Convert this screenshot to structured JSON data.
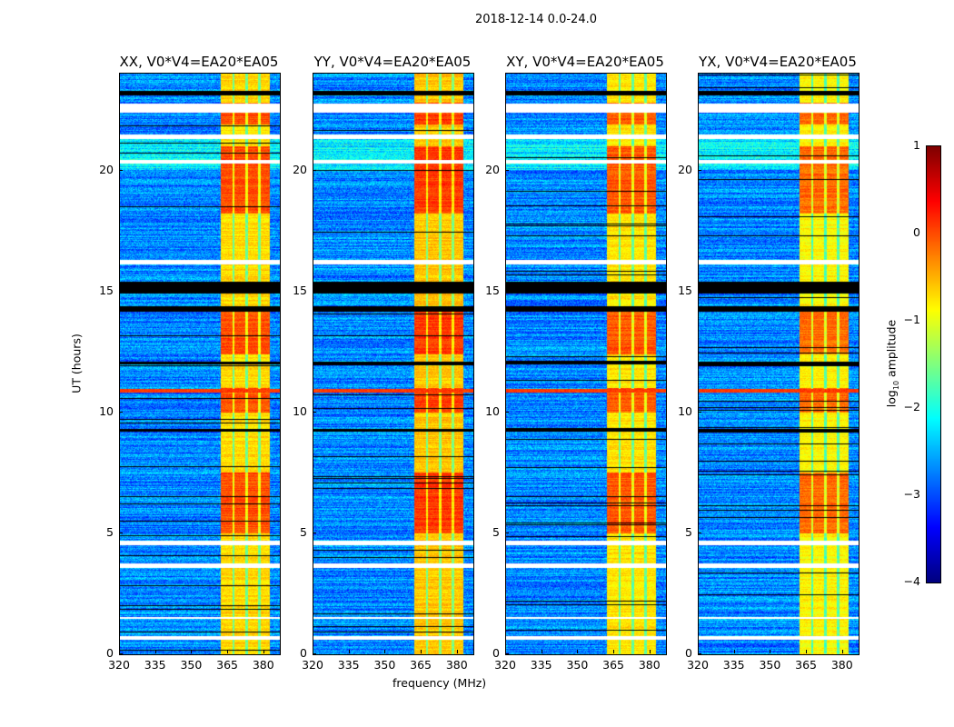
{
  "chart_data": {
    "type": "heatmap",
    "title": "2018-12-14 0.0-24.0",
    "xlabel": "frequency (MHz)",
    "ylabel": "UT (hours)",
    "xlim": [
      320,
      386.5
    ],
    "ylim": [
      0,
      24
    ],
    "xticks": [
      320,
      335,
      350,
      365,
      380
    ],
    "xtick_labels": [
      "320",
      "335",
      "350",
      "365",
      "380"
    ],
    "yticks": [
      0,
      5,
      10,
      15,
      20
    ],
    "ytick_labels": [
      "0",
      "5",
      "10",
      "15",
      "20"
    ],
    "panels": [
      {
        "title": "XX, V0*V4=EA20*EA05",
        "band_level": -0.7
      },
      {
        "title": "YY, V0*V4=EA20*EA05",
        "band_level": -0.6
      },
      {
        "title": "XY, V0*V4=EA20*EA05",
        "band_level": -0.75
      },
      {
        "title": "YX, V0*V4=EA20*EA05",
        "band_level": -0.85
      }
    ],
    "background_level": -2.7,
    "strong_band_MHz": [
      362,
      382.5
    ],
    "band_channel_gaps_MHz": [
      367.2,
      372.8,
      378.1
    ],
    "bright_periods_hours": [
      [
        18.2,
        21.0
      ],
      [
        12.4,
        14.2
      ],
      [
        21.9,
        22.8
      ],
      [
        10.0,
        11.0
      ],
      [
        5.0,
        7.5
      ]
    ],
    "rfi_line_hours": 10.9,
    "flagged_white_hours": [
      [
        22.4,
        22.75
      ],
      [
        21.3,
        21.5
      ],
      [
        20.3,
        20.45
      ],
      [
        16.1,
        16.3
      ],
      [
        4.5,
        4.7
      ],
      [
        3.55,
        3.75
      ],
      [
        1.45,
        1.55
      ],
      [
        0.6,
        0.75
      ]
    ],
    "flagged_black_hours": [
      [
        14.9,
        15.4
      ],
      [
        14.15,
        14.4
      ],
      [
        23.1,
        23.3
      ],
      [
        12.0,
        12.1
      ],
      [
        9.2,
        9.3
      ]
    ],
    "colorbar": {
      "label": "log10 amplitude",
      "label_main": "log",
      "label_sub": "10",
      "label_rest": " amplitude",
      "range": [
        -4,
        1
      ],
      "ticks": [
        1,
        0,
        -1,
        -2,
        -3,
        -4
      ],
      "tick_labels": [
        "1",
        "0",
        "−1",
        "−2",
        "−3",
        "−4"
      ],
      "colormap": "jet"
    }
  }
}
